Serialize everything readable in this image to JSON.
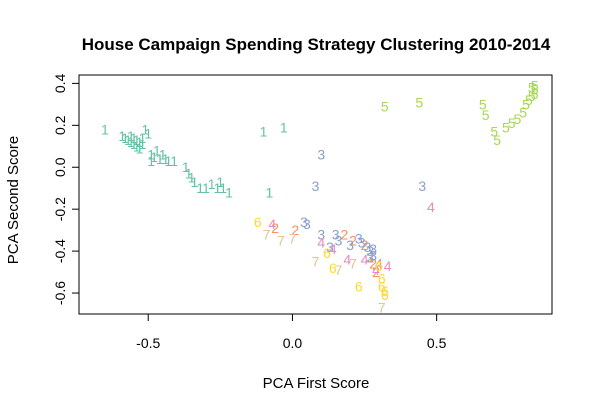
{
  "chart_data": {
    "type": "scatter",
    "title": "House Campaign Spending Strategy Clustering 2010-2014",
    "xlabel": "PCA First Score",
    "ylabel": "PCA Second Score",
    "xlim": [
      -0.74,
      0.9
    ],
    "ylim": [
      -0.7,
      0.44
    ],
    "xticks": [
      -0.5,
      0.0,
      0.5
    ],
    "xtick_labels": [
      "-0.5",
      "0.0",
      "0.5"
    ],
    "yticks": [
      -0.6,
      -0.4,
      -0.2,
      0.0,
      0.2,
      0.4
    ],
    "ytick_labels": [
      "-0.6",
      "-0.4",
      "-0.2",
      "0.0",
      "0.2",
      "0.4"
    ],
    "grid": false,
    "marker": "cluster number label",
    "cluster_colors": {
      "1": "#66c2a5",
      "2": "#fc8d62",
      "3": "#8da0cb",
      "4": "#e78ac3",
      "5": "#a6d854",
      "6": "#ffd92f",
      "7": "#e5c494"
    },
    "series": [
      {
        "label": "1",
        "x": [
          -0.65,
          -0.59,
          -0.58,
          -0.57,
          -0.56,
          -0.56,
          -0.55,
          -0.55,
          -0.54,
          -0.54,
          -0.53,
          -0.53,
          -0.52,
          -0.52,
          -0.51,
          -0.5,
          -0.49,
          -0.49,
          -0.48,
          -0.47,
          -0.46,
          -0.45,
          -0.44,
          -0.43,
          -0.41,
          -0.37,
          -0.36,
          -0.35,
          -0.34,
          -0.32,
          -0.3,
          -0.28,
          -0.26,
          -0.25,
          -0.24,
          -0.22,
          -0.1,
          -0.08,
          -0.03
        ],
        "y": [
          0.18,
          0.15,
          0.14,
          0.13,
          0.15,
          0.12,
          0.14,
          0.11,
          0.13,
          0.1,
          0.12,
          0.09,
          0.11,
          0.14,
          0.18,
          0.16,
          0.06,
          0.03,
          0.05,
          0.08,
          0.04,
          0.06,
          0.04,
          0.03,
          0.03,
          -0.0,
          -0.03,
          -0.05,
          -0.07,
          -0.1,
          -0.1,
          -0.08,
          -0.1,
          -0.07,
          -0.1,
          -0.12,
          0.17,
          -0.12,
          0.19
        ]
      },
      {
        "label": "2",
        "x": [
          -0.06,
          0.01,
          0.18,
          0.21,
          0.25,
          0.27,
          0.28,
          0.29
        ],
        "y": [
          -0.29,
          -0.3,
          -0.32,
          -0.35,
          -0.37,
          -0.43,
          -0.46,
          -0.5
        ]
      },
      {
        "label": "3",
        "x": [
          0.1,
          0.08,
          0.45,
          0.04,
          0.05,
          0.1,
          0.15,
          0.16,
          0.13,
          0.2,
          0.23,
          0.24,
          0.26,
          0.27,
          0.28,
          0.27,
          0.28
        ],
        "y": [
          0.06,
          -0.09,
          -0.09,
          -0.26,
          -0.27,
          -0.32,
          -0.32,
          -0.35,
          -0.38,
          -0.37,
          -0.34,
          -0.36,
          -0.38,
          -0.4,
          -0.39,
          -0.43,
          -0.42
        ]
      },
      {
        "label": "4",
        "x": [
          -0.07,
          0.48,
          0.1,
          0.14,
          0.19,
          0.25,
          0.3,
          0.33,
          0.29
        ],
        "y": [
          -0.27,
          -0.19,
          -0.36,
          -0.39,
          -0.44,
          -0.44,
          -0.46,
          -0.47,
          -0.49
        ]
      },
      {
        "label": "5",
        "x": [
          0.32,
          0.44,
          0.66,
          0.67,
          0.7,
          0.71,
          0.74,
          0.76,
          0.78,
          0.8,
          0.81,
          0.82,
          0.83,
          0.84,
          0.84,
          0.83,
          0.84
        ],
        "y": [
          0.29,
          0.31,
          0.3,
          0.25,
          0.17,
          0.13,
          0.19,
          0.21,
          0.23,
          0.26,
          0.3,
          0.32,
          0.34,
          0.35,
          0.37,
          0.38,
          0.39
        ]
      },
      {
        "label": "6",
        "x": [
          -0.12,
          0.12,
          0.14,
          0.23,
          0.3,
          0.31,
          0.31,
          0.32,
          0.32
        ],
        "y": [
          -0.26,
          -0.41,
          -0.48,
          -0.57,
          -0.47,
          -0.53,
          -0.57,
          -0.59,
          -0.61
        ]
      },
      {
        "label": "7",
        "x": [
          -0.09,
          -0.04,
          0.0,
          0.08,
          0.16,
          0.21,
          0.31
        ],
        "y": [
          -0.32,
          -0.35,
          -0.34,
          -0.45,
          -0.49,
          -0.46,
          -0.67
        ]
      }
    ]
  }
}
